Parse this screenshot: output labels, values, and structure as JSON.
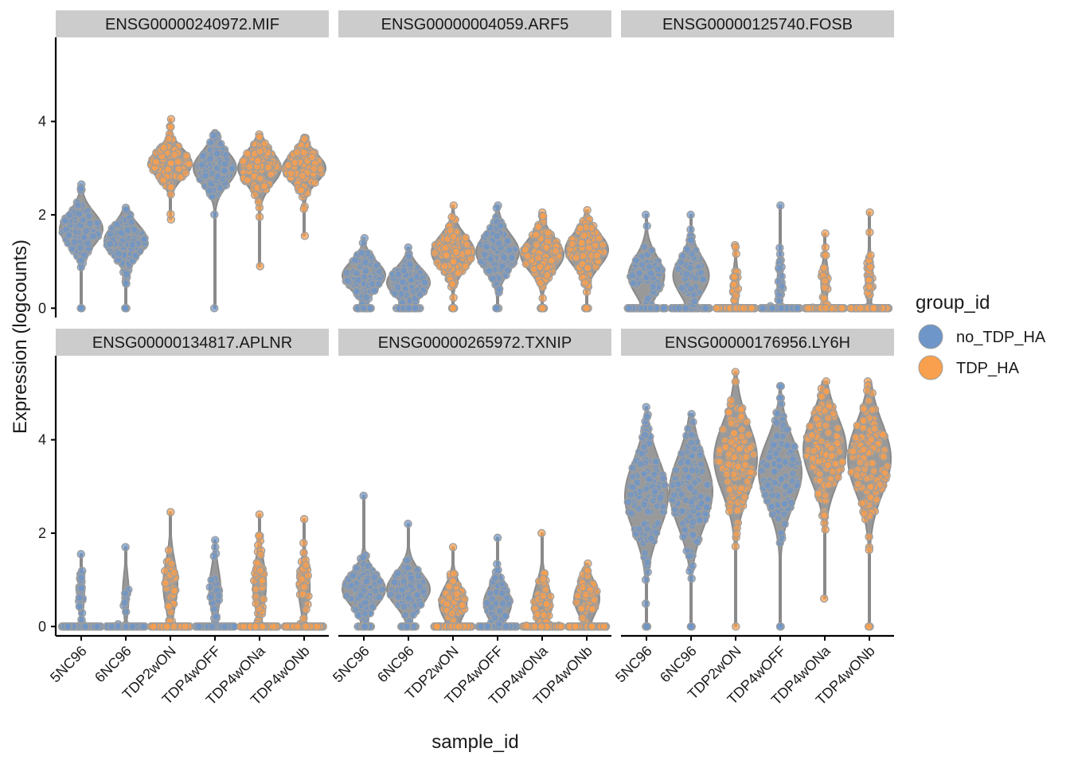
{
  "colors": {
    "no_TDP_HA": "#6f96c8",
    "TDP_HA": "#f9a04e",
    "violin": "#9a9a9a",
    "point_stroke": "#9e9e9e"
  },
  "legend": {
    "title": "group_id",
    "items": [
      {
        "label": "no_TDP_HA",
        "color_key": "no_TDP_HA"
      },
      {
        "label": "TDP_HA",
        "color_key": "TDP_HA"
      }
    ]
  },
  "chart_data": {
    "type": "violin",
    "xlabel": "sample_id",
    "ylabel": "Expression (logcounts)",
    "ylim": [
      -0.2,
      5.8
    ],
    "yticks": [
      0,
      2,
      4
    ],
    "categories": [
      "5NC96",
      "6NC96",
      "TDP2wON",
      "TDP4wOFF",
      "TDP4wONa",
      "TDP4wONb"
    ],
    "category_groups": [
      "no_TDP_HA",
      "no_TDP_HA",
      "TDP_HA",
      "no_TDP_HA",
      "TDP_HA",
      "TDP_HA"
    ],
    "panels": [
      {
        "title": "ENSG00000240972.MIF",
        "series": [
          {
            "sample": "5NC96",
            "center": 1.7,
            "sd": 0.35,
            "min": 0,
            "max": 2.65,
            "zero_frac": 0.02
          },
          {
            "sample": "6NC96",
            "center": 1.45,
            "sd": 0.33,
            "min": 0,
            "max": 2.15,
            "zero_frac": 0.03
          },
          {
            "sample": "TDP2wON",
            "center": 3.1,
            "sd": 0.3,
            "min": 1.9,
            "max": 4.05,
            "zero_frac": 0
          },
          {
            "sample": "TDP4wOFF",
            "center": 3.0,
            "sd": 0.35,
            "min": 0,
            "max": 3.75,
            "zero_frac": 0
          },
          {
            "sample": "TDP4wONa",
            "center": 3.0,
            "sd": 0.35,
            "min": 0.9,
            "max": 3.72,
            "zero_frac": 0
          },
          {
            "sample": "TDP4wONb",
            "center": 3.0,
            "sd": 0.3,
            "min": 1.55,
            "max": 3.65,
            "zero_frac": 0
          }
        ]
      },
      {
        "title": "ENSG00000004059.ARF5",
        "series": [
          {
            "sample": "5NC96",
            "center": 0.7,
            "sd": 0.3,
            "min": 0,
            "max": 1.5,
            "zero_frac": 0.2
          },
          {
            "sample": "6NC96",
            "center": 0.55,
            "sd": 0.3,
            "min": 0,
            "max": 1.3,
            "zero_frac": 0.28
          },
          {
            "sample": "TDP2wON",
            "center": 1.2,
            "sd": 0.35,
            "min": 0,
            "max": 2.2,
            "zero_frac": 0.05
          },
          {
            "sample": "TDP4wOFF",
            "center": 1.2,
            "sd": 0.38,
            "min": 0,
            "max": 2.2,
            "zero_frac": 0.05
          },
          {
            "sample": "TDP4wONa",
            "center": 1.15,
            "sd": 0.35,
            "min": 0,
            "max": 2.05,
            "zero_frac": 0.07
          },
          {
            "sample": "TDP4wONb",
            "center": 1.25,
            "sd": 0.35,
            "min": 0,
            "max": 2.1,
            "zero_frac": 0.06
          }
        ]
      },
      {
        "title": "ENSG00000125740.FOSB",
        "series": [
          {
            "sample": "5NC96",
            "center": 0.7,
            "sd": 0.4,
            "min": 0,
            "max": 2.0,
            "zero_frac": 0.45
          },
          {
            "sample": "6NC96",
            "center": 0.7,
            "sd": 0.4,
            "min": 0,
            "max": 2.0,
            "zero_frac": 0.45
          },
          {
            "sample": "TDP2wON",
            "center": 0.5,
            "sd": 0.35,
            "min": 0,
            "max": 1.35,
            "zero_frac": 0.85
          },
          {
            "sample": "TDP4wOFF",
            "center": 0.5,
            "sd": 0.4,
            "min": 0,
            "max": 2.2,
            "zero_frac": 0.85
          },
          {
            "sample": "TDP4wONa",
            "center": 0.6,
            "sd": 0.35,
            "min": 0,
            "max": 1.6,
            "zero_frac": 0.82
          },
          {
            "sample": "TDP4wONb",
            "center": 0.6,
            "sd": 0.4,
            "min": 0,
            "max": 2.05,
            "zero_frac": 0.82
          }
        ]
      },
      {
        "title": "ENSG00000134817.APLNR",
        "series": [
          {
            "sample": "5NC96",
            "center": 0.7,
            "sd": 0.35,
            "min": 0,
            "max": 1.55,
            "zero_frac": 0.85
          },
          {
            "sample": "6NC96",
            "center": 0.7,
            "sd": 0.4,
            "min": 0,
            "max": 1.7,
            "zero_frac": 0.85
          },
          {
            "sample": "TDP2wON",
            "center": 0.9,
            "sd": 0.5,
            "min": 0,
            "max": 2.45,
            "zero_frac": 0.7
          },
          {
            "sample": "TDP4wOFF",
            "center": 0.8,
            "sd": 0.45,
            "min": 0,
            "max": 1.85,
            "zero_frac": 0.75
          },
          {
            "sample": "TDP4wONa",
            "center": 0.9,
            "sd": 0.5,
            "min": 0,
            "max": 2.4,
            "zero_frac": 0.72
          },
          {
            "sample": "TDP4wONb",
            "center": 0.85,
            "sd": 0.45,
            "min": 0,
            "max": 2.3,
            "zero_frac": 0.75
          }
        ]
      },
      {
        "title": "ENSG00000265972.TXNIP",
        "series": [
          {
            "sample": "5NC96",
            "center": 0.8,
            "sd": 0.35,
            "min": 0,
            "max": 2.8,
            "zero_frac": 0.2
          },
          {
            "sample": "6NC96",
            "center": 0.8,
            "sd": 0.35,
            "min": 0,
            "max": 2.2,
            "zero_frac": 0.2
          },
          {
            "sample": "TDP2wON",
            "center": 0.5,
            "sd": 0.35,
            "min": 0,
            "max": 1.7,
            "zero_frac": 0.5
          },
          {
            "sample": "TDP4wOFF",
            "center": 0.5,
            "sd": 0.35,
            "min": 0,
            "max": 1.9,
            "zero_frac": 0.5
          },
          {
            "sample": "TDP4wONa",
            "center": 0.5,
            "sd": 0.4,
            "min": 0,
            "max": 2.0,
            "zero_frac": 0.6
          },
          {
            "sample": "TDP4wONb",
            "center": 0.6,
            "sd": 0.35,
            "min": 0,
            "max": 1.35,
            "zero_frac": 0.55
          }
        ]
      },
      {
        "title": "ENSG00000176956.LY6H",
        "series": [
          {
            "sample": "5NC96",
            "center": 2.8,
            "sd": 0.75,
            "min": 0,
            "max": 4.7,
            "zero_frac": 0.01
          },
          {
            "sample": "6NC96",
            "center": 2.9,
            "sd": 0.75,
            "min": 0,
            "max": 4.55,
            "zero_frac": 0.01
          },
          {
            "sample": "TDP2wON",
            "center": 3.6,
            "sd": 0.75,
            "min": 0,
            "max": 5.45,
            "zero_frac": 0.005
          },
          {
            "sample": "TDP4wOFF",
            "center": 3.3,
            "sd": 0.7,
            "min": 0,
            "max": 5.15,
            "zero_frac": 0.005
          },
          {
            "sample": "TDP4wONa",
            "center": 3.8,
            "sd": 0.7,
            "min": 0.6,
            "max": 5.25,
            "zero_frac": 0
          },
          {
            "sample": "TDP4wONb",
            "center": 3.6,
            "sd": 0.75,
            "min": 0,
            "max": 5.25,
            "zero_frac": 0.005
          }
        ]
      }
    ]
  }
}
